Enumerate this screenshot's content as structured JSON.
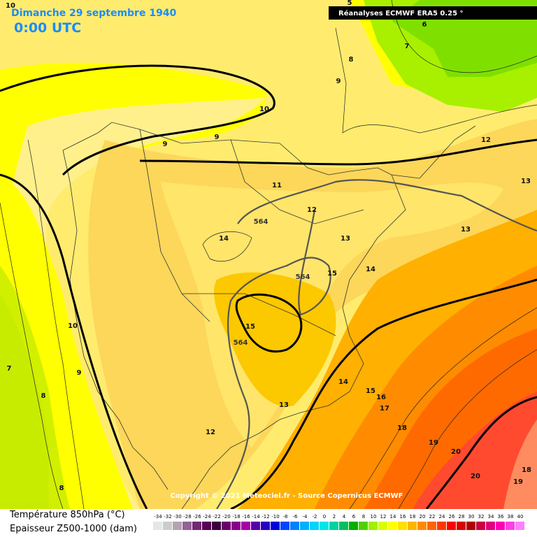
{
  "header": {
    "date": "Dimanche 29 septembre 1940",
    "time": "0:00 UTC",
    "source": "Réanalyses ECMWF ERA5 0.25 °"
  },
  "contour_labels": [
    "10",
    "5",
    "6",
    "7",
    "8",
    "9",
    "10",
    "9",
    "9",
    "12",
    "13",
    "11",
    "12",
    "564",
    "13",
    "13",
    "14",
    "564",
    "15",
    "14",
    "15",
    "564",
    "10",
    "9",
    "7",
    "8",
    "14",
    "15",
    "16",
    "17",
    "13",
    "18",
    "12",
    "19",
    "20",
    "20",
    "18",
    "19",
    "8"
  ],
  "copyright": "Copyright © 2021 Meteociel.fr - Source Copernicus ECMWF",
  "legend": {
    "title_temperature": "Température 850hPa (°C)",
    "title_thickness": "Epaisseur Z500-1000 (dam)",
    "values": [
      -34,
      -32,
      -30,
      -28,
      -26,
      -24,
      -22,
      -20,
      -18,
      -16,
      -14,
      -12,
      -10,
      -8,
      -6,
      -4,
      -2,
      0,
      2,
      4,
      6,
      8,
      10,
      12,
      14,
      16,
      18,
      20,
      22,
      24,
      26,
      28,
      30,
      32,
      34,
      36,
      38,
      40
    ],
    "colors": [
      "#e6e6e6",
      "#cccccc",
      "#b3a3b3",
      "#946494",
      "#722872",
      "#560056",
      "#3c003c",
      "#6a006a",
      "#8a008a",
      "#a800a8",
      "#5a00a8",
      "#2a00c4",
      "#0000d8",
      "#0044ff",
      "#0080ff",
      "#00b0ff",
      "#00d4ff",
      "#00e6e6",
      "#00d2a0",
      "#00c060",
      "#00b000",
      "#50d000",
      "#a0f000",
      "#d8ff00",
      "#ffff00",
      "#ffe000",
      "#ffb400",
      "#ff8c00",
      "#ff6400",
      "#ff3800",
      "#ff0000",
      "#d80000",
      "#b00000",
      "#c80040",
      "#e00080",
      "#ff00b4",
      "#ff40e0",
      "#ff80ff"
    ]
  }
}
